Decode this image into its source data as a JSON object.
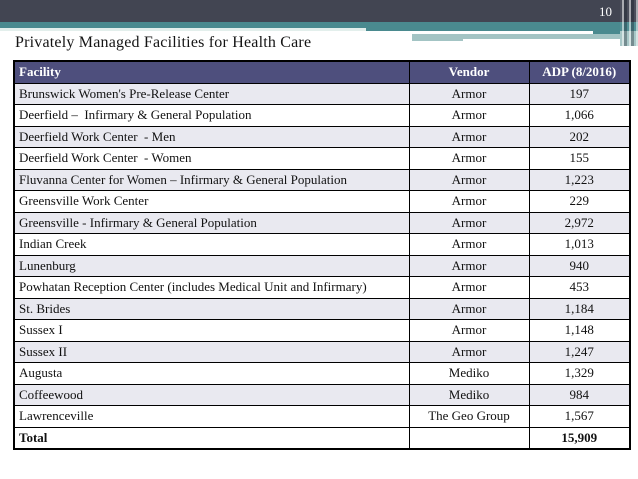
{
  "slide": {
    "page_number": "10",
    "title": "Privately Managed Facilities for Health Care"
  },
  "theme": {
    "top_bar_color": "#424552",
    "teal_color": "#4A8A8F",
    "light_teal_color": "#A3C4C4",
    "header_bg": "#4E4F7D",
    "header_text_color": "#FFFFFF",
    "row_bg": "#FFFFFF",
    "row_alt_bg": "#E9E9F0"
  },
  "table": {
    "columns": [
      {
        "label": "Facility"
      },
      {
        "label": "Vendor"
      },
      {
        "label": "ADP (8/2016)"
      }
    ],
    "rows": [
      [
        "Brunswick Women's Pre-Release Center",
        "Armor",
        "197"
      ],
      [
        "Deerfield –  Infirmary & General Population",
        "Armor",
        "1,066"
      ],
      [
        "Deerfield Work Center  - Men",
        "Armor",
        "202"
      ],
      [
        "Deerfield Work Center  - Women",
        "Armor",
        "155"
      ],
      [
        "Fluvanna Center for Women – Infirmary & General Population",
        "Armor",
        "1,223"
      ],
      [
        "Greensville Work Center",
        "Armor",
        "229"
      ],
      [
        "Greensville - Infirmary & General Population",
        "Armor",
        "2,972"
      ],
      [
        "Indian Creek",
        "Armor",
        "1,013"
      ],
      [
        "Lunenburg",
        "Armor",
        "940"
      ],
      [
        "Powhatan Reception Center (includes Medical Unit and Infirmary)",
        "Armor",
        "453"
      ],
      [
        "St. Brides",
        "Armor",
        "1,184"
      ],
      [
        "Sussex I",
        "Armor",
        "1,148"
      ],
      [
        "Sussex II",
        "Armor",
        "1,247"
      ],
      [
        "Augusta",
        "Mediko",
        "1,329"
      ],
      [
        "Coffeewood",
        "Mediko",
        "984"
      ],
      [
        "Lawrenceville",
        "The Geo Group",
        "1,567"
      ]
    ],
    "total_row": {
      "label": "Total",
      "vendor": "",
      "value": "15,909"
    }
  }
}
